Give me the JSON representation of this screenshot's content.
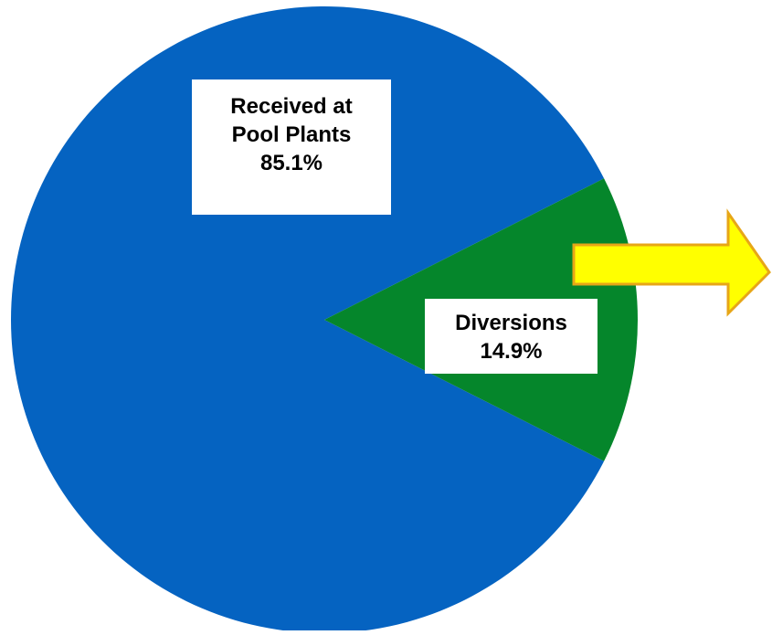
{
  "chart_data": {
    "type": "pie",
    "title": "",
    "slices": [
      {
        "label_lines": [
          "Received at",
          "Pool Plants"
        ],
        "value": 85.1,
        "value_text": "85.1%",
        "color": "#0563C1"
      },
      {
        "label_lines": [
          "Diversions"
        ],
        "value": 14.9,
        "value_text": "14.9%",
        "color": "#05862B"
      }
    ],
    "annotation": {
      "shape": "arrow",
      "direction": "right",
      "fill": "#FFFF00",
      "stroke": "#E7A617"
    }
  }
}
